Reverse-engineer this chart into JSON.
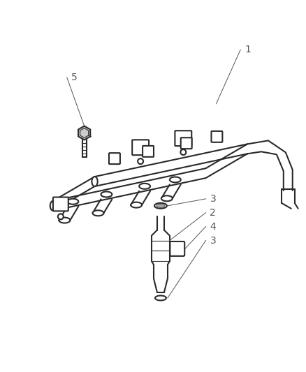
{
  "bg_color": "#ffffff",
  "line_color": "#2a2a2a",
  "figsize": [
    4.39,
    5.33
  ],
  "dpi": 100,
  "callout_color": "#555555",
  "callout_lw": 0.7
}
